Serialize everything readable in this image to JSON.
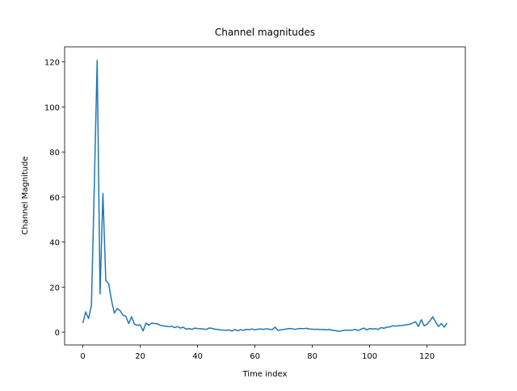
{
  "chart_data": {
    "type": "line",
    "title": "Channel magnitudes",
    "x_label": "Time index",
    "y_label": "Channel Magnitude",
    "color": "#1f77b4",
    "x": [
      0,
      1,
      2,
      3,
      4,
      5,
      6,
      7,
      8,
      9,
      10,
      11,
      12,
      13,
      14,
      15,
      16,
      17,
      18,
      19,
      20,
      21,
      22,
      23,
      24,
      25,
      26,
      27,
      28,
      29,
      30,
      31,
      32,
      33,
      34,
      35,
      36,
      37,
      38,
      39,
      40,
      41,
      42,
      43,
      44,
      45,
      46,
      47,
      48,
      49,
      50,
      51,
      52,
      53,
      54,
      55,
      56,
      57,
      58,
      59,
      60,
      61,
      62,
      63,
      64,
      65,
      66,
      67,
      68,
      69,
      70,
      71,
      72,
      73,
      74,
      75,
      76,
      77,
      78,
      79,
      80,
      81,
      82,
      83,
      84,
      85,
      86,
      87,
      88,
      89,
      90,
      91,
      92,
      93,
      94,
      95,
      96,
      97,
      98,
      99,
      100,
      101,
      102,
      103,
      104,
      105,
      106,
      107,
      108,
      109,
      110,
      111,
      112,
      113,
      114,
      115,
      116,
      117,
      118,
      119,
      120,
      121,
      122,
      123,
      124,
      125,
      126,
      127
    ],
    "values": [
      4,
      9,
      6,
      12,
      65,
      120.7,
      17,
      61.6,
      23,
      21.5,
      14,
      8.5,
      10.5,
      9.5,
      7.5,
      7,
      3.8,
      6.8,
      3.5,
      3,
      3.2,
      0.5,
      4,
      3,
      4,
      3.8,
      3.7,
      3,
      2.8,
      2.6,
      2.4,
      2.6,
      2,
      2.5,
      1.8,
      2.2,
      1.3,
      1.6,
      1.2,
      1.8,
      1.6,
      1.5,
      1.4,
      1.2,
      1.8,
      1.7,
      1.3,
      1.2,
      1,
      0.9,
      0.8,
      1,
      0.5,
      1.2,
      0.6,
      1.1,
      0.8,
      1.2,
      1.1,
      1.4,
      1,
      1.3,
      1.4,
      1.2,
      1.5,
      1.3,
      1.1,
      2.2,
      0.8,
      1,
      1.2,
      1.4,
      1.6,
      1.5,
      1.2,
      1.5,
      1.6,
      1.5,
      1.7,
      1.4,
      1.3,
      1.2,
      1.3,
      1.1,
      1.2,
      1,
      1.2,
      0.8,
      0.7,
      0.4,
      0.5,
      0.8,
      0.9,
      0.8,
      0.9,
      1.2,
      0.7,
      1.3,
      1.8,
      1,
      1.6,
      1.4,
      1.5,
      1.2,
      2,
      1.7,
      2.2,
      2.3,
      2.8,
      2.7,
      2.8,
      2.9,
      3.1,
      3.3,
      3.5,
      4,
      4.6,
      2.5,
      5.5,
      2.8,
      3.5,
      5,
      6.8,
      4.5,
      2.5,
      3.8,
      2.2,
      4
    ],
    "xlim": [
      -6.35,
      133.35
    ],
    "xticks": [
      0,
      20,
      40,
      60,
      80,
      100,
      120
    ],
    "ylim": [
      -5.7,
      126.7
    ],
    "yticks": [
      0,
      20,
      40,
      60,
      80,
      100,
      120
    ]
  }
}
